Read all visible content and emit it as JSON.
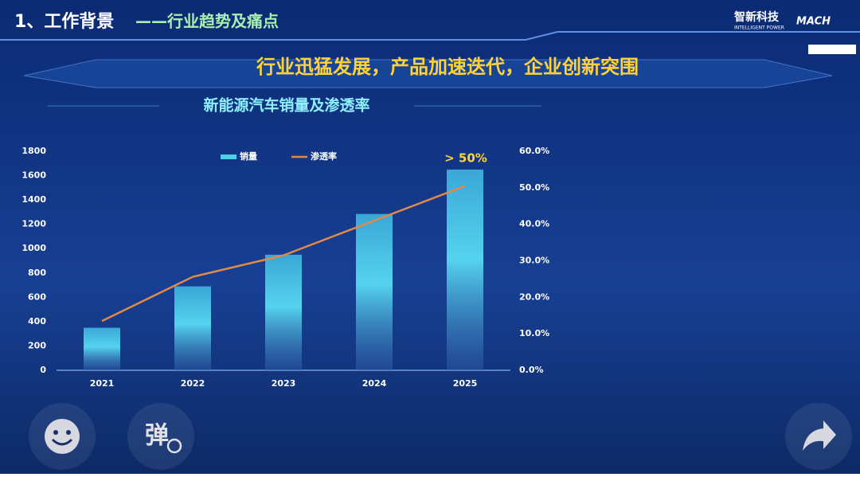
{
  "header": {
    "title": "1、工作背景",
    "subtitle": "——行业趋势及痛点",
    "brand": "智新科技",
    "brand_tagline": "INTELLIGENT POWER",
    "brand_logo": "MACH",
    "banner": "行业迅猛发展，产品加速迭代，企业创新突围"
  },
  "chart_data": {
    "type": "bar",
    "title": "新能源汽车销量及渗透率",
    "categories": [
      "2021",
      "2022",
      "2023",
      "2024",
      "2025"
    ],
    "series": [
      {
        "name": "销量",
        "type": "bar",
        "color": "#4fd0ea",
        "values": [
          350,
          690,
          950,
          1285,
          1650
        ]
      },
      {
        "name": "渗透率",
        "type": "line",
        "axis": "y2",
        "color": "#e08a4a",
        "values": [
          13.5,
          25.6,
          31.5,
          41,
          50.5
        ]
      }
    ],
    "ylim": [
      0,
      1800
    ],
    "yticks": [
      0,
      200,
      400,
      600,
      800,
      1000,
      1200,
      1400,
      1600,
      1800
    ],
    "y2lim": [
      0,
      60
    ],
    "y2ticks": [
      {
        "value": 0,
        "label": "0.0%"
      },
      {
        "value": 10,
        "label": "10.0%"
      },
      {
        "value": 20,
        "label": "20.0%"
      },
      {
        "value": 30,
        "label": "30.0%"
      },
      {
        "value": 40,
        "label": "40.0%"
      },
      {
        "value": 50,
        "label": "50.0%"
      },
      {
        "value": 60,
        "label": "60.0%"
      }
    ],
    "annotation": "> 50%",
    "legend": "top"
  },
  "controls": {
    "danmaku": "弹"
  }
}
